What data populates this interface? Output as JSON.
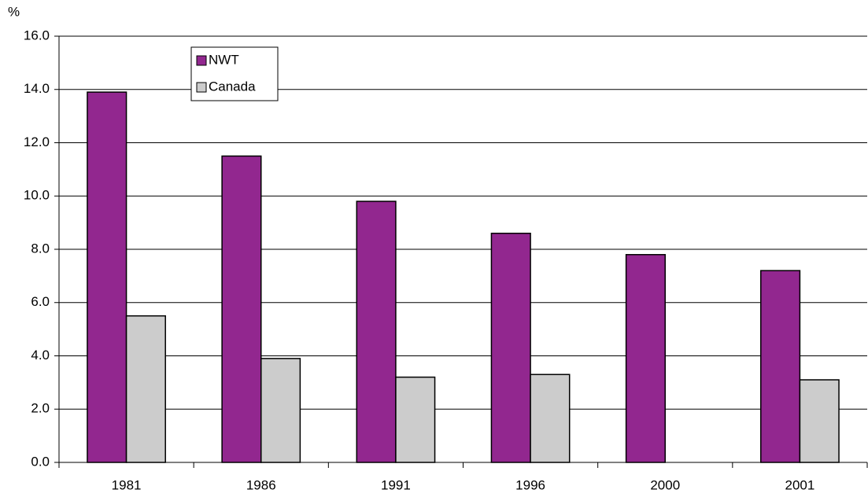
{
  "chart_data": {
    "type": "bar",
    "y_label": "%",
    "categories": [
      "1981",
      "1986",
      "1991",
      "1996",
      "2000",
      "2001"
    ],
    "series": [
      {
        "name": "NWT",
        "color": "#92278f",
        "values": [
          13.9,
          11.5,
          9.8,
          8.6,
          7.8,
          7.2
        ]
      },
      {
        "name": "Canada",
        "color": "#cccccc",
        "values": [
          5.5,
          3.9,
          3.2,
          3.3,
          null,
          3.1
        ]
      }
    ],
    "ylim": [
      0,
      16
    ],
    "yticks": [
      {
        "value": 0,
        "label": "0.0"
      },
      {
        "value": 2,
        "label": "2.0"
      },
      {
        "value": 4,
        "label": "4.0"
      },
      {
        "value": 6,
        "label": "6.0"
      },
      {
        "value": 8,
        "label": "8.0"
      },
      {
        "value": 10,
        "label": "10.0"
      },
      {
        "value": 12,
        "label": "12.0"
      },
      {
        "value": 14,
        "label": "14.0"
      },
      {
        "value": 16,
        "label": "16.0"
      }
    ],
    "grid": true,
    "legend": "top-left"
  }
}
